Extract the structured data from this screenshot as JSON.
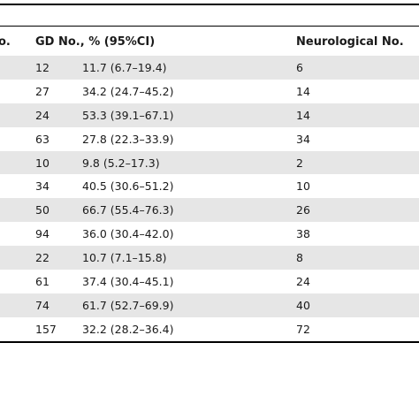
{
  "table": {
    "headers": {
      "left_partial": "o.",
      "gd": "GD No., % (95%CI)",
      "neurological": "Neurological No."
    },
    "rows": [
      {
        "gd_no": "12",
        "gd_pct": "11.7 (6.7–19.4)",
        "neuro_no": "6"
      },
      {
        "gd_no": "27",
        "gd_pct": "34.2 (24.7–45.2)",
        "neuro_no": "14"
      },
      {
        "gd_no": "24",
        "gd_pct": "53.3 (39.1–67.1)",
        "neuro_no": "14"
      },
      {
        "gd_no": "63",
        "gd_pct": "27.8 (22.3–33.9)",
        "neuro_no": "34"
      },
      {
        "gd_no": "10",
        "gd_pct": "9.8 (5.2–17.3)",
        "neuro_no": "2"
      },
      {
        "gd_no": "34",
        "gd_pct": "40.5 (30.6–51.2)",
        "neuro_no": "10"
      },
      {
        "gd_no": "50",
        "gd_pct": "66.7 (55.4–76.3)",
        "neuro_no": "26"
      },
      {
        "gd_no": "94",
        "gd_pct": "36.0 (30.4–42.0)",
        "neuro_no": "38"
      },
      {
        "gd_no": "22",
        "gd_pct": "10.7 (7.1–15.8)",
        "neuro_no": "8"
      },
      {
        "gd_no": "61",
        "gd_pct": "37.4 (30.4–45.1)",
        "neuro_no": "24"
      },
      {
        "gd_no": "74",
        "gd_pct": "61.7 (52.7–69.9)",
        "neuro_no": "40"
      },
      {
        "gd_no": "157",
        "gd_pct": "32.2 (28.2–36.4)",
        "neuro_no": "72"
      }
    ]
  }
}
